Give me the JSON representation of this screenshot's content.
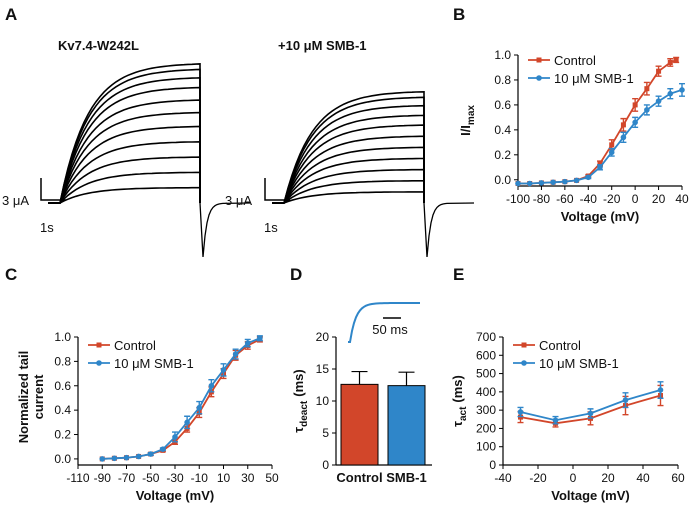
{
  "colors": {
    "control": "#d2462a",
    "smb": "#2f86c9",
    "trace": "#000000"
  },
  "panel_letters": {
    "A": "A",
    "B": "B",
    "C": "C",
    "D": "D",
    "E": "E"
  },
  "traces": {
    "left_title": "Kv7.4-W242L",
    "right_title": "+10 μM SMB-1",
    "left_amp_scale": "3 μA",
    "left_time_scale": "1s",
    "right_amp_scale": "3 μA",
    "right_time_scale": "1s",
    "left_steady": [
      0.11,
      0.22,
      0.33,
      0.44,
      0.55,
      0.65,
      0.74,
      0.83,
      0.9,
      0.96,
      1.0
    ],
    "right_steady": [
      0.08,
      0.16,
      0.24,
      0.32,
      0.4,
      0.48,
      0.56,
      0.63,
      0.7,
      0.76,
      0.8
    ],
    "tail_depth": 1.0
  },
  "chart_data": [
    {
      "id": "B",
      "type": "line",
      "xlabel": "Voltage (mV)",
      "ylabel": "I/I",
      "ylabel_sub": "max",
      "xlim": [
        -100,
        40
      ],
      "ylim": [
        -0.05,
        1.0
      ],
      "xticks": [
        "-100",
        "-80",
        "-60",
        "-40",
        "-20",
        "0",
        "20",
        "40"
      ],
      "yticks": [
        "0.0",
        "0.2",
        "0.4",
        "0.6",
        "0.8",
        "1.0"
      ],
      "legend_position": "top-left",
      "series": [
        {
          "name": "Control",
          "color": "#d2462a",
          "x": [
            -100,
            -90,
            -80,
            -70,
            -60,
            -50,
            -40,
            -30,
            -20,
            -10,
            0,
            10,
            20,
            30,
            35
          ],
          "y": [
            -0.03,
            -0.03,
            -0.025,
            -0.02,
            -0.015,
            -0.005,
            0.03,
            0.13,
            0.28,
            0.44,
            0.6,
            0.73,
            0.87,
            0.94,
            0.96
          ],
          "err": [
            0,
            0,
            0,
            0,
            0,
            0,
            0.01,
            0.02,
            0.04,
            0.05,
            0.05,
            0.05,
            0.04,
            0.03,
            0.02
          ]
        },
        {
          "name": "10 μM SMB-1",
          "color": "#2f86c9",
          "x": [
            -100,
            -90,
            -80,
            -70,
            -60,
            -50,
            -40,
            -30,
            -20,
            -10,
            0,
            10,
            20,
            30,
            40
          ],
          "y": [
            -0.03,
            -0.03,
            -0.025,
            -0.02,
            -0.015,
            -0.005,
            0.02,
            0.1,
            0.22,
            0.34,
            0.46,
            0.56,
            0.63,
            0.69,
            0.72
          ],
          "err": [
            0,
            0,
            0,
            0,
            0,
            0,
            0.01,
            0.02,
            0.03,
            0.04,
            0.04,
            0.04,
            0.04,
            0.04,
            0.05
          ]
        }
      ]
    },
    {
      "id": "C",
      "type": "line",
      "xlabel": "Voltage (mV)",
      "ylabel_lines": [
        "Normalized tail",
        "current"
      ],
      "xlim": [
        -110,
        50
      ],
      "ylim": [
        -0.05,
        1.0
      ],
      "xticks": [
        "-110",
        "-90",
        "-70",
        "-50",
        "-30",
        "-10",
        "10",
        "30",
        "50"
      ],
      "yticks": [
        "0.0",
        "0.2",
        "0.4",
        "0.6",
        "0.8",
        "1.0"
      ],
      "legend_position": "top-left",
      "series": [
        {
          "name": "Control",
          "color": "#d2462a",
          "x": [
            -90,
            -80,
            -70,
            -60,
            -50,
            -40,
            -30,
            -20,
            -10,
            0,
            10,
            20,
            30,
            40
          ],
          "y": [
            0.0,
            0.005,
            0.01,
            0.02,
            0.04,
            0.07,
            0.14,
            0.25,
            0.38,
            0.55,
            0.7,
            0.85,
            0.93,
            0.98
          ],
          "err": [
            0,
            0,
            0,
            0,
            0.01,
            0.01,
            0.02,
            0.03,
            0.04,
            0.04,
            0.04,
            0.04,
            0.03,
            0.02
          ]
        },
        {
          "name": "10 μM SMB-1",
          "color": "#2f86c9",
          "x": [
            -90,
            -80,
            -70,
            -60,
            -50,
            -40,
            -30,
            -20,
            -10,
            0,
            10,
            20,
            30,
            40
          ],
          "y": [
            0.0,
            0.005,
            0.01,
            0.02,
            0.04,
            0.08,
            0.18,
            0.3,
            0.42,
            0.6,
            0.73,
            0.86,
            0.95,
            0.99
          ],
          "err": [
            0,
            0,
            0,
            0,
            0.01,
            0.01,
            0.04,
            0.05,
            0.05,
            0.05,
            0.05,
            0.04,
            0.03,
            0.02
          ]
        }
      ]
    },
    {
      "id": "D",
      "type": "bar",
      "categories": [
        "Control",
        "SMB-1"
      ],
      "values": [
        12.6,
        12.4
      ],
      "errors": [
        2.0,
        2.1
      ],
      "colors": [
        "#d2462a",
        "#2f86c9"
      ],
      "ylabel": "τ",
      "ylabel_sub": "deact",
      "ylabel_unit": "(ms)",
      "ylim": [
        0,
        20
      ],
      "yticks": [
        "0",
        "5",
        "10",
        "15",
        "20"
      ],
      "inset_scale_label": "50 ms"
    },
    {
      "id": "E",
      "type": "line",
      "xlabel": "Voltage (mV)",
      "ylabel": "τ",
      "ylabel_sub": "act",
      "ylabel_unit": "(ms)",
      "xlim": [
        -40,
        60
      ],
      "ylim": [
        0,
        700
      ],
      "xticks": [
        "-40",
        "-20",
        "0",
        "20",
        "40",
        "60"
      ],
      "yticks": [
        "0",
        "100",
        "200",
        "300",
        "400",
        "500",
        "600",
        "700"
      ],
      "legend_position": "top-left",
      "series": [
        {
          "name": "Control",
          "color": "#d2462a",
          "x": [
            -30,
            -10,
            10,
            30,
            50
          ],
          "y": [
            262,
            228,
            255,
            325,
            380
          ],
          "err": [
            30,
            20,
            35,
            50,
            55
          ]
        },
        {
          "name": "10 μM SMB-1",
          "color": "#2f86c9",
          "x": [
            -30,
            -10,
            10,
            30,
            50
          ],
          "y": [
            290,
            245,
            282,
            355,
            410
          ],
          "err": [
            25,
            20,
            25,
            40,
            45
          ]
        }
      ]
    }
  ]
}
